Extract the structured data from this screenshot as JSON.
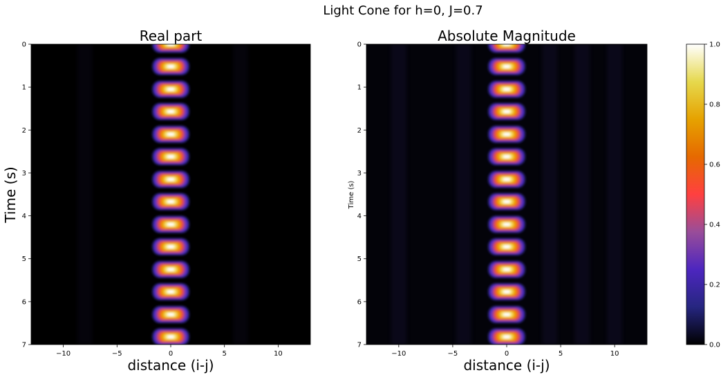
{
  "figure": {
    "suptitle": "Light Cone for h=0, J=0.7"
  },
  "colors": {
    "background": "#000000",
    "colormap": "CMRmap",
    "colormap_stops": [
      "#000000",
      "#262680",
      "#4d26bf",
      "#994d99",
      "#ff4040",
      "#e66900",
      "#e6a200",
      "#e6d84d",
      "#ffffff"
    ]
  },
  "chart_data": [
    {
      "type": "heatmap",
      "title": "Real part",
      "xlabel": "distance (i-j)",
      "ylabel": "Time (s)",
      "xlim": [
        -13,
        13
      ],
      "ylim": [
        7,
        0
      ],
      "y_inverted": true,
      "xticks": [
        -10,
        -5,
        0,
        5,
        10
      ],
      "xtick_labels": [
        "−10",
        "−5",
        "0",
        "5",
        "10"
      ],
      "yticks": [
        0,
        1,
        2,
        3,
        4,
        5,
        6,
        7
      ],
      "ytick_labels": [
        "0",
        "1",
        "2",
        "3",
        "4",
        "5",
        "6",
        "7"
      ],
      "blob_center_x": 0,
      "blob_times": [
        0,
        0.52,
        1.05,
        1.57,
        2.1,
        2.62,
        3.15,
        3.67,
        4.2,
        4.72,
        5.25,
        5.77,
        6.3,
        6.82
      ],
      "peak_value": 1.0,
      "faint_stripe_x": [
        -8,
        6.5
      ],
      "faint_level": 0.03
    },
    {
      "type": "heatmap",
      "title": "Absolute Magnitude",
      "xlabel": "distance (i-j)",
      "ylabel": "Time (s)",
      "xlim": [
        -13,
        13
      ],
      "ylim": [
        7,
        0
      ],
      "y_inverted": true,
      "xticks": [
        -10,
        -5,
        0,
        5,
        10
      ],
      "xtick_labels": [
        "−10",
        "−5",
        "0",
        "5",
        "10"
      ],
      "yticks": [
        0,
        1,
        2,
        3,
        4,
        5,
        6,
        7
      ],
      "ytick_labels": [
        "0",
        "1",
        "2",
        "3",
        "4",
        "5",
        "6",
        "7"
      ],
      "blob_center_x": 0,
      "blob_times": [
        0,
        0.52,
        1.05,
        1.57,
        2.1,
        2.62,
        3.15,
        3.67,
        4.2,
        4.72,
        5.25,
        5.77,
        6.3,
        6.82
      ],
      "peak_value": 1.0,
      "faint_stripe_x": [
        -10,
        -4,
        4,
        7,
        10
      ],
      "faint_level": 0.05
    }
  ],
  "colorbar": {
    "range": [
      0.0,
      1.0
    ],
    "ticks": [
      0.0,
      0.2,
      0.4,
      0.6,
      0.8,
      1.0
    ],
    "tick_labels": [
      "0.0",
      "0.2",
      "0.4",
      "0.6",
      "0.8",
      "1.0"
    ]
  }
}
